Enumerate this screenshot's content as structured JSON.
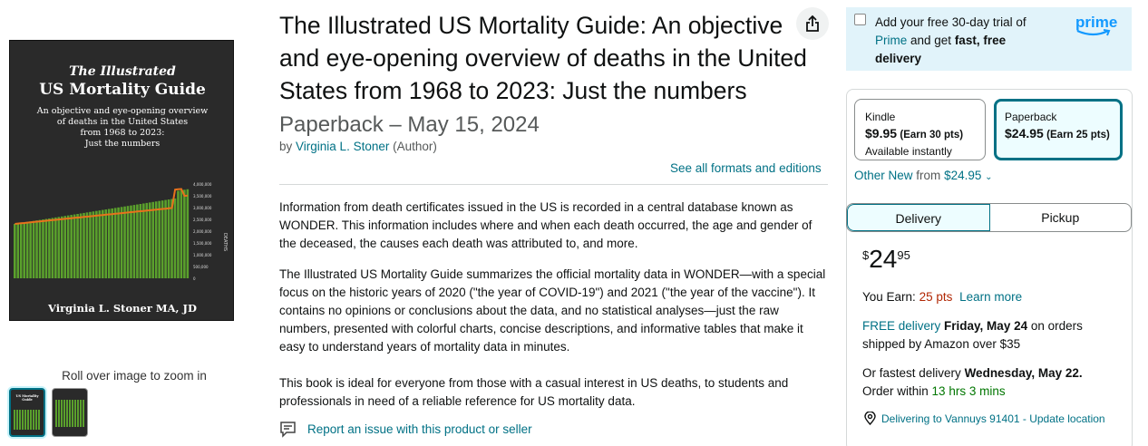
{
  "cover": {
    "title_line1": "The Illustrated",
    "title_line2": "US Mortality Guide",
    "subtitle_lines": [
      "An objective and eye-opening overview",
      "of deaths in the United States",
      "from 1968 to 2023:",
      "Just the numbers"
    ],
    "author": "Virginia L. Stoner MA, JD",
    "axis_label": "DEATHS",
    "y_ticks": [
      "4,000,000",
      "3,500,000",
      "3,000,000",
      "2,500,000",
      "2,000,000",
      "1,500,000",
      "1,000,000",
      "500,000",
      "0"
    ],
    "bar_color": "#5aa02c",
    "line_color": "#e8721c"
  },
  "gallery": {
    "zoom_hint": "Roll over image to zoom in"
  },
  "product": {
    "title": "The Illustrated US Mortality Guide: An objective and eye-opening overview of deaths in the United States from 1968 to 2023: Just the numbers",
    "format_date": "Paperback – May 15, 2024",
    "by": "by",
    "author": "Virginia L. Stoner",
    "author_role": "(Author)",
    "see_all": "See all formats and editions",
    "description": [
      "Information from death certificates issued in the US is recorded in a central database known as WONDER. This information includes where and when each death occurred, the age and gender of the deceased, the causes each death was attributed to, and more.",
      "The Illustrated US Mortality Guide summarizes the official mortality data in WONDER—with a special focus on the historic years of 2020 (\"the year of COVID-19\") and 2021 (\"the year of the vaccine\"). It contains no opinions or conclusions about the data, and no statistical analyses—just the raw numbers, presented with colorful charts, concise descriptions, and informative tables that make it easy to understand years of mortality data in minutes.",
      "This book is ideal for everyone from those with a casual interest in US deaths, to students and professionals in need of a reliable reference for US mortality data."
    ],
    "report": "Report an issue with this product or seller"
  },
  "prime": {
    "text_pre": "Add your free 30-day trial of ",
    "text_prime": "Prime",
    "text_mid": " and get ",
    "text_bold": "fast, free delivery",
    "logo": "prime"
  },
  "formats": {
    "kindle": {
      "label": "Kindle",
      "price": "$9.95",
      "pts": "(Earn 30 pts)",
      "note": "Available instantly"
    },
    "paperback": {
      "label": "Paperback",
      "price": "$24.95",
      "pts": "(Earn 25 pts)"
    }
  },
  "other_new": {
    "label": "Other New",
    "from": "from",
    "price": "$24.95"
  },
  "tabs": {
    "delivery": "Delivery",
    "pickup": "Pickup"
  },
  "buy": {
    "currency": "$",
    "price_whole": "24",
    "price_fraction": "95",
    "earn_label": "You Earn:",
    "earn_pts": "25 pts",
    "learn_more": "Learn more",
    "free_delivery": "FREE delivery",
    "delivery_date": "Friday, May 24",
    "delivery_rest": "on orders shipped by Amazon over $35",
    "fastest_pre": "Or fastest delivery",
    "fastest_date": "Wednesday, May 22",
    "order_within": "Order within",
    "countdown": "13 hrs 3 mins",
    "location": "Delivering to Vannuys 91401 - Update location"
  }
}
